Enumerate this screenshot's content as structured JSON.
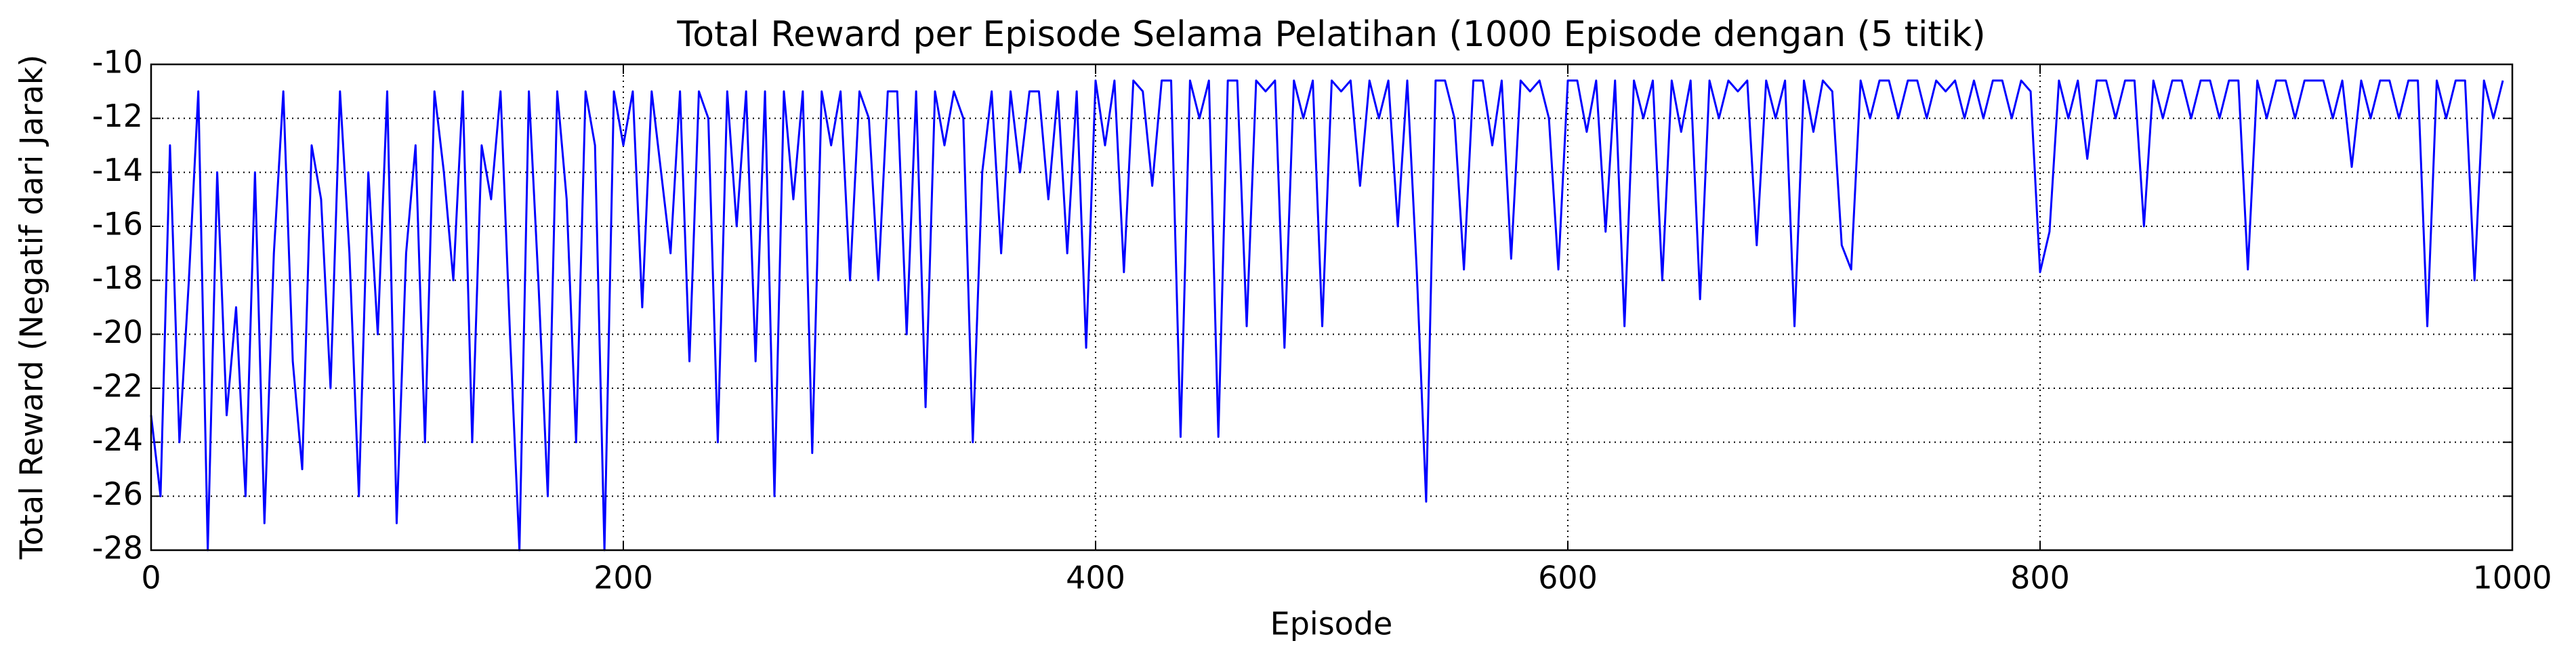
{
  "chart_data": {
    "type": "line",
    "title": "Total Reward per Episode Selama Pelatihan (1000 Episode dengan (5 titik)",
    "xlabel": "Episode",
    "ylabel": "Total Reward (Negatif dari Jarak)",
    "xlim": [
      0,
      1000
    ],
    "ylim": [
      -28,
      -10
    ],
    "xticks": [
      0,
      200,
      400,
      600,
      800,
      1000
    ],
    "yticks": [
      -28,
      -26,
      -24,
      -22,
      -20,
      -18,
      -16,
      -14,
      -12,
      -10
    ],
    "grid": true,
    "x": [
      0,
      4,
      8,
      12,
      16,
      20,
      24,
      28,
      32,
      36,
      40,
      44,
      48,
      52,
      56,
      60,
      64,
      68,
      72,
      76,
      80,
      84,
      88,
      92,
      96,
      100,
      104,
      108,
      112,
      116,
      120,
      124,
      128,
      132,
      136,
      140,
      144,
      148,
      152,
      156,
      160,
      164,
      168,
      172,
      176,
      180,
      184,
      188,
      192,
      196,
      200,
      204,
      208,
      212,
      216,
      220,
      224,
      228,
      232,
      236,
      240,
      244,
      248,
      252,
      256,
      260,
      264,
      268,
      272,
      276,
      280,
      284,
      288,
      292,
      296,
      300,
      304,
      308,
      312,
      316,
      320,
      324,
      328,
      332,
      336,
      340,
      344,
      348,
      352,
      356,
      360,
      364,
      368,
      372,
      376,
      380,
      384,
      388,
      392,
      396,
      400,
      404,
      408,
      412,
      416,
      420,
      424,
      428,
      432,
      436,
      440,
      444,
      448,
      452,
      456,
      460,
      464,
      468,
      472,
      476,
      480,
      484,
      488,
      492,
      496,
      500,
      504,
      508,
      512,
      516,
      520,
      524,
      528,
      532,
      536,
      540,
      544,
      548,
      552,
      556,
      560,
      564,
      568,
      572,
      576,
      580,
      584,
      588,
      592,
      596,
      600,
      604,
      608,
      612,
      616,
      620,
      624,
      628,
      632,
      636,
      640,
      644,
      648,
      652,
      656,
      660,
      664,
      668,
      672,
      676,
      680,
      684,
      688,
      692,
      696,
      700,
      704,
      708,
      712,
      716,
      720,
      724,
      728,
      732,
      736,
      740,
      744,
      748,
      752,
      756,
      760,
      764,
      768,
      772,
      776,
      780,
      784,
      788,
      792,
      796,
      800,
      804,
      808,
      812,
      816,
      820,
      824,
      828,
      832,
      836,
      840,
      844,
      848,
      852,
      856,
      860,
      864,
      868,
      872,
      876,
      880,
      884,
      888,
      892,
      896,
      900,
      904,
      908,
      912,
      916,
      920,
      924,
      928,
      932,
      936,
      940,
      944,
      948,
      952,
      956,
      960,
      964,
      968,
      972,
      976,
      980,
      984,
      988,
      992,
      996
    ],
    "series": [
      {
        "name": "Total Reward",
        "color": "#0000ff",
        "values": [
          -23,
          -26,
          -13,
          -24,
          -18,
          -11,
          -28,
          -14,
          -23,
          -19,
          -26,
          -14,
          -27,
          -17,
          -11,
          -21,
          -25,
          -13,
          -15,
          -22,
          -11,
          -17,
          -26,
          -14,
          -20,
          -11,
          -27,
          -17,
          -13,
          -24,
          -11,
          -14,
          -18,
          -11,
          -24,
          -13,
          -15,
          -11,
          -20,
          -28,
          -11,
          -18,
          -26,
          -11,
          -15,
          -24,
          -11,
          -13,
          -28,
          -11,
          -13,
          -11,
          -19,
          -11,
          -14,
          -17,
          -11,
          -21,
          -11,
          -12,
          -24,
          -11,
          -16,
          -11,
          -21,
          -11,
          -26,
          -11,
          -15,
          -11,
          -24.4,
          -11,
          -13,
          -11,
          -18,
          -11,
          -12,
          -18,
          -11,
          -11,
          -20,
          -11,
          -22.7,
          -11,
          -13,
          -11,
          -12,
          -24,
          -14,
          -11,
          -17,
          -11,
          -14,
          -11,
          -11,
          -15,
          -11,
          -17,
          -11,
          -20.5,
          -10.6,
          -13,
          -10.6,
          -17.7,
          -10.6,
          -11,
          -14.5,
          -10.6,
          -10.6,
          -23.8,
          -10.6,
          -12,
          -10.6,
          -23.8,
          -10.6,
          -10.6,
          -19.7,
          -10.6,
          -11,
          -10.6,
          -20.5,
          -10.6,
          -12,
          -10.6,
          -19.7,
          -10.6,
          -11,
          -10.6,
          -14.5,
          -10.6,
          -12,
          -10.6,
          -16,
          -10.6,
          -17.6,
          -26.2,
          -10.6,
          -10.6,
          -12,
          -17.6,
          -10.6,
          -10.6,
          -13,
          -10.6,
          -17.2,
          -10.6,
          -11,
          -10.6,
          -12,
          -17.6,
          -10.6,
          -10.6,
          -12.5,
          -10.6,
          -16.2,
          -10.6,
          -19.7,
          -10.6,
          -12,
          -10.6,
          -18,
          -10.6,
          -12.5,
          -10.6,
          -18.7,
          -10.6,
          -12,
          -10.6,
          -11,
          -10.6,
          -16.7,
          -10.6,
          -12,
          -10.6,
          -19.7,
          -10.6,
          -12.5,
          -10.6,
          -11,
          -16.7,
          -17.6,
          -10.6,
          -12,
          -10.6,
          -10.6,
          -12,
          -10.6,
          -10.6,
          -12,
          -10.6,
          -11,
          -10.6,
          -12,
          -10.6,
          -12,
          -10.6,
          -10.6,
          -12,
          -10.6,
          -11,
          -17.7,
          -16.2,
          -10.6,
          -12,
          -10.6,
          -13.5,
          -10.6,
          -10.6,
          -12,
          -10.6,
          -10.6,
          -16,
          -10.6,
          -12,
          -10.6,
          -10.6,
          -12,
          -10.6,
          -10.6,
          -12,
          -10.6,
          -10.6,
          -17.6,
          -10.6,
          -12,
          -10.6,
          -10.6,
          -12,
          -10.6,
          -10.6,
          -10.6,
          -12,
          -10.6,
          -13.8,
          -10.6,
          -12,
          -10.6,
          -10.6,
          -12,
          -10.6,
          -10.6,
          -19.7,
          -10.6,
          -12,
          -10.6,
          -10.6,
          -18,
          -10.6,
          -12,
          -10.6
        ]
      }
    ]
  }
}
